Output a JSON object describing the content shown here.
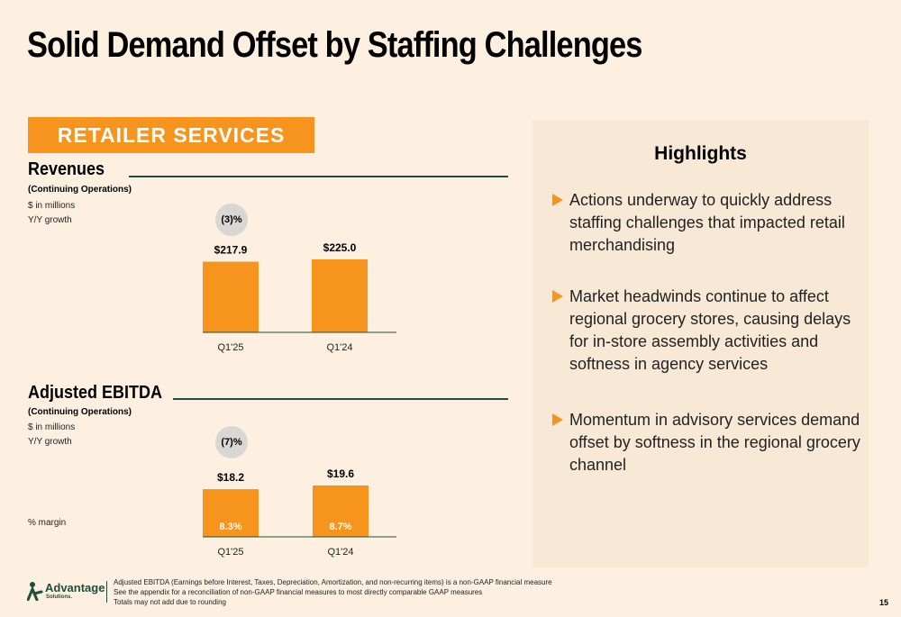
{
  "title": "Solid Demand Offset by Staffing Challenges",
  "section_label": "RETAILER SERVICES",
  "revenue": {
    "heading": "Revenues",
    "subheading": "(Continuing Operations)",
    "units": "$ in millions",
    "growth_label": "Y/Y growth",
    "growth_value": "(3)%"
  },
  "ebitda": {
    "heading": "Adjusted EBITDA",
    "subheading": "(Continuing Operations)",
    "units": "$ in millions",
    "growth_label": "Y/Y growth",
    "growth_value": "(7)%",
    "margin_label": "% margin"
  },
  "chart_data": [
    {
      "type": "bar",
      "title": "Revenues",
      "categories": [
        "Q1'25",
        "Q1'24"
      ],
      "values": [
        217.9,
        225.0
      ],
      "value_labels": [
        "$217.9",
        "$225.0"
      ],
      "ylim": [
        0,
        225.0
      ],
      "color": "#f7941d"
    },
    {
      "type": "bar",
      "title": "Adjusted EBITDA",
      "categories": [
        "Q1'25",
        "Q1'24"
      ],
      "values": [
        18.2,
        19.6
      ],
      "value_labels": [
        "$18.2",
        "$19.6"
      ],
      "margins": [
        "8.3%",
        "8.7%"
      ],
      "ylim": [
        0,
        19.6
      ],
      "color": "#f7941d"
    }
  ],
  "highlights": {
    "title": "Highlights",
    "items": [
      "Actions underway to quickly address staffing challenges that impacted retail merchandising",
      "Market headwinds continue to affect regional grocery stores, causing delays for in-store assembly activities and softness in agency services",
      "Momentum in advisory services demand offset by softness in the regional grocery channel"
    ]
  },
  "footer": {
    "logo_name": "Advantage",
    "logo_sub": "Solutions.",
    "footnotes": [
      "Adjusted EBITDA (Earnings before Interest, Taxes, Depreciation, Amortization, and non-recurring items) is a non-GAAP financial measure",
      "See the appendix for a reconciliation of non-GAAP financial measures to most directly comparable GAAP measures",
      "Totals may not add due to rounding"
    ],
    "page_number": "15"
  },
  "colors": {
    "accent": "#f7941d",
    "brand_green": "#1f4e3d",
    "background": "#fdf0e0",
    "panel": "#f8e9d7",
    "bubble": "#d9d6d5"
  }
}
